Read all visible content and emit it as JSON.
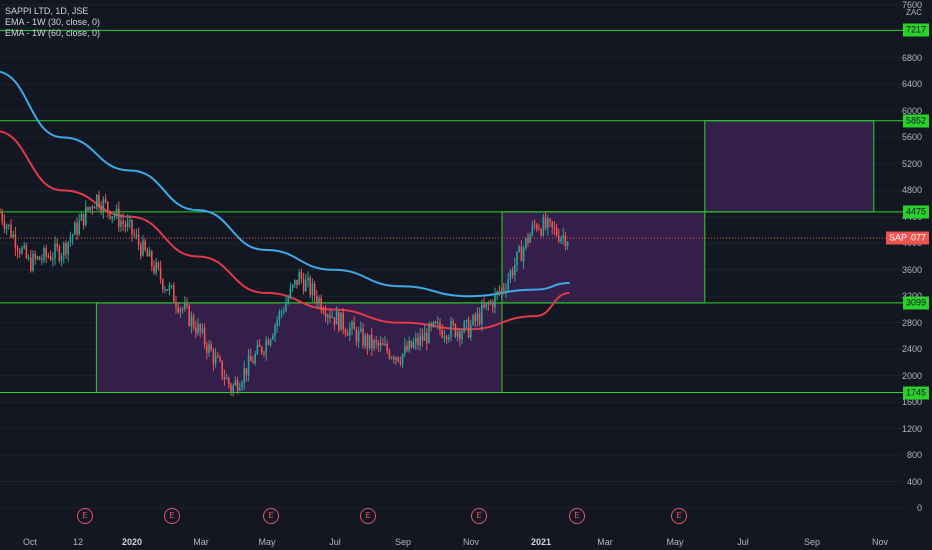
{
  "legend": {
    "title": "SAPPI LTD, 1D, JSE",
    "ema1": "EMA - 1W (30, close, 0)",
    "ema2": "EMA - 1W (60, close, 0)"
  },
  "currency": "ZAC",
  "y_ticks": [
    "7600",
    "7200",
    "6800",
    "6400",
    "6000",
    "5600",
    "5200",
    "4800",
    "4400",
    "4000",
    "3600",
    "3200",
    "2800",
    "2400",
    "2000",
    "1600",
    "1200",
    "800",
    "400",
    "0"
  ],
  "x_ticks": [
    "Oct",
    "12",
    "2020",
    "Mar",
    "May",
    "Jul",
    "Sep",
    "Nov",
    "2021",
    "Mar",
    "May",
    "Jul",
    "Sep",
    "Nov"
  ],
  "level_labels": [
    "7217",
    "5852",
    "4475",
    "3099",
    "1745"
  ],
  "price_label": "4077",
  "symbol_label": "SAP",
  "events": [
    "E",
    "E",
    "E",
    "E",
    "E",
    "E",
    "E"
  ],
  "colors": {
    "background": "#131722",
    "levels": "#2bd12b",
    "ema30": "#3fa9e8",
    "ema60": "#e0394a",
    "zone_fill": "#3a2150",
    "up": "#26a69a",
    "down": "#ef5350"
  },
  "chart_data": {
    "type": "candlestick",
    "title": "SAPPI LTD, 1D, JSE",
    "unit": "ZAC",
    "ylim": [
      0,
      7600
    ],
    "x_range": [
      "2019-10",
      "2021-11"
    ],
    "horizontal_levels": [
      7217,
      5852,
      4475,
      3099,
      1745
    ],
    "last_price": 4077,
    "zones": [
      {
        "from": "2019-12",
        "to": "2020-12",
        "low": 1745,
        "high": 3099
      },
      {
        "from": "2020-12",
        "to": "2021-06",
        "low": 3099,
        "high": 4475
      },
      {
        "from": "2021-06",
        "to": "2021-11",
        "low": 4475,
        "high": 5852
      }
    ],
    "series": [
      {
        "name": "EMA - 1W (30, close, 0)",
        "dates": [
          "2019-09",
          "2019-11",
          "2020-01",
          "2020-03",
          "2020-05",
          "2020-07",
          "2020-09",
          "2020-11",
          "2021-01",
          "2021-02"
        ],
        "values": [
          6600,
          5600,
          5100,
          4500,
          3900,
          3600,
          3350,
          3200,
          3300,
          3400
        ]
      },
      {
        "name": "EMA - 1W (60, close, 0)",
        "dates": [
          "2019-09",
          "2019-11",
          "2020-01",
          "2020-03",
          "2020-05",
          "2020-07",
          "2020-09",
          "2020-11",
          "2021-01",
          "2021-02"
        ],
        "values": [
          5700,
          4800,
          4400,
          3800,
          3250,
          3000,
          2800,
          2700,
          2900,
          3250
        ]
      },
      {
        "name": "SAPPI LTD",
        "dates": [
          "2019-09",
          "2019-10",
          "2019-11",
          "2019-12",
          "2020-01",
          "2020-02",
          "2020-03",
          "2020-04",
          "2020-05",
          "2020-06",
          "2020-07",
          "2020-08",
          "2020-09",
          "2020-10",
          "2020-11",
          "2020-12",
          "2021-01",
          "2021-02"
        ],
        "values": [
          4600,
          3700,
          3900,
          4700,
          4200,
          3400,
          2700,
          1800,
          2500,
          3500,
          2900,
          2500,
          2300,
          2700,
          2700,
          3300,
          4300,
          4077
        ]
      }
    ]
  }
}
